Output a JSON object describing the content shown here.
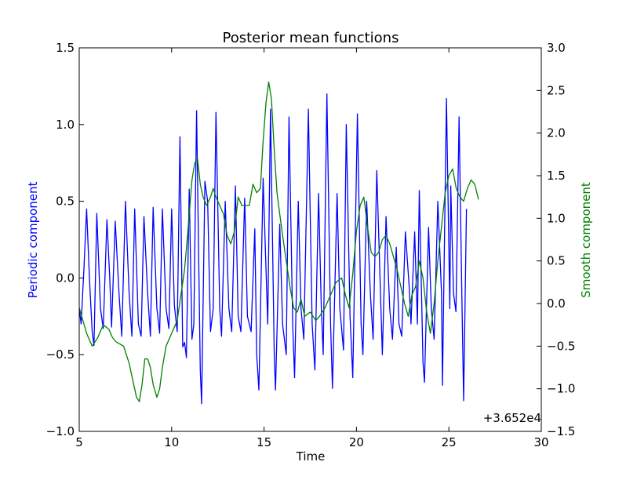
{
  "chart_data": {
    "type": "line",
    "title": "Posterior mean functions",
    "xlabel": "Time",
    "x_offset_label": "+3.652e4",
    "xlim": [
      5,
      30
    ],
    "xticks": [
      "5",
      "10",
      "15",
      "20",
      "25",
      "30"
    ],
    "left_axis": {
      "label": "Periodic component",
      "color": "#0000ff",
      "ylim": [
        -1.0,
        1.5
      ],
      "ticks": [
        "−1.0",
        "−0.5",
        "0.0",
        "0.5",
        "1.0",
        "1.5"
      ]
    },
    "right_axis": {
      "label": "Smooth component",
      "color": "#008000",
      "ylim": [
        -1.5,
        3.0
      ],
      "ticks": [
        "−1.5",
        "−1.0",
        "−0.5",
        "0.0",
        "0.5",
        "1.0",
        "1.5",
        "2.0",
        "2.5",
        "3.0"
      ]
    },
    "series": [
      {
        "axis": "left",
        "color": "#0000ff",
        "points": [
          [
            5.0,
            -0.2
          ],
          [
            5.1,
            -0.3
          ],
          [
            5.25,
            0.05
          ],
          [
            5.4,
            0.45
          ],
          [
            5.55,
            0.0
          ],
          [
            5.7,
            -0.35
          ],
          [
            5.8,
            -0.44
          ],
          [
            5.95,
            0.42
          ],
          [
            6.15,
            -0.2
          ],
          [
            6.3,
            -0.33
          ],
          [
            6.5,
            0.38
          ],
          [
            6.65,
            0.0
          ],
          [
            6.75,
            -0.32
          ],
          [
            6.95,
            0.37
          ],
          [
            7.15,
            -0.1
          ],
          [
            7.3,
            -0.38
          ],
          [
            7.5,
            0.5
          ],
          [
            7.7,
            -0.1
          ],
          [
            7.85,
            -0.38
          ],
          [
            8.0,
            0.45
          ],
          [
            8.2,
            -0.3
          ],
          [
            8.35,
            -0.38
          ],
          [
            8.5,
            0.4
          ],
          [
            8.7,
            -0.1
          ],
          [
            8.85,
            -0.38
          ],
          [
            9.0,
            0.46
          ],
          [
            9.2,
            -0.2
          ],
          [
            9.35,
            -0.36
          ],
          [
            9.5,
            0.45
          ],
          [
            9.7,
            -0.2
          ],
          [
            9.85,
            -0.33
          ],
          [
            10.0,
            0.45
          ],
          [
            10.15,
            -0.18
          ],
          [
            10.3,
            -0.35
          ],
          [
            10.45,
            0.92
          ],
          [
            10.6,
            -0.45
          ],
          [
            10.7,
            -0.42
          ],
          [
            10.8,
            -0.52
          ],
          [
            10.95,
            0.58
          ],
          [
            11.1,
            -0.4
          ],
          [
            11.2,
            -0.3
          ],
          [
            11.35,
            1.09
          ],
          [
            11.55,
            -0.6
          ],
          [
            11.62,
            -0.82
          ],
          [
            11.8,
            0.63
          ],
          [
            11.95,
            0.5
          ],
          [
            12.1,
            -0.35
          ],
          [
            12.25,
            -0.2
          ],
          [
            12.4,
            1.08
          ],
          [
            12.6,
            -0.2
          ],
          [
            12.7,
            -0.38
          ],
          [
            12.9,
            0.5
          ],
          [
            13.1,
            -0.2
          ],
          [
            13.25,
            -0.35
          ],
          [
            13.45,
            0.6
          ],
          [
            13.6,
            -0.25
          ],
          [
            13.75,
            -0.35
          ],
          [
            13.95,
            0.52
          ],
          [
            14.1,
            -0.25
          ],
          [
            14.3,
            -0.35
          ],
          [
            14.5,
            0.32
          ],
          [
            14.6,
            -0.5
          ],
          [
            14.72,
            -0.73
          ],
          [
            14.95,
            0.65
          ],
          [
            15.2,
            -0.3
          ],
          [
            15.35,
            1.1
          ],
          [
            15.55,
            -0.5
          ],
          [
            15.62,
            -0.73
          ],
          [
            15.85,
            0.35
          ],
          [
            16.0,
            -0.3
          ],
          [
            16.2,
            -0.5
          ],
          [
            16.35,
            1.05
          ],
          [
            16.55,
            -0.3
          ],
          [
            16.65,
            -0.65
          ],
          [
            16.85,
            0.5
          ],
          [
            17.0,
            -0.2
          ],
          [
            17.15,
            -0.4
          ],
          [
            17.4,
            1.1
          ],
          [
            17.6,
            -0.3
          ],
          [
            17.75,
            -0.6
          ],
          [
            17.95,
            0.55
          ],
          [
            18.1,
            -0.2
          ],
          [
            18.2,
            -0.5
          ],
          [
            18.4,
            1.2
          ],
          [
            18.6,
            -0.3
          ],
          [
            18.7,
            -0.72
          ],
          [
            18.95,
            0.55
          ],
          [
            19.1,
            -0.2
          ],
          [
            19.3,
            -0.47
          ],
          [
            19.45,
            1.0
          ],
          [
            19.65,
            -0.25
          ],
          [
            19.8,
            -0.65
          ],
          [
            20.05,
            1.07
          ],
          [
            20.25,
            -0.3
          ],
          [
            20.35,
            -0.5
          ],
          [
            20.55,
            0.5
          ],
          [
            20.75,
            -0.1
          ],
          [
            20.9,
            -0.4
          ],
          [
            21.1,
            0.7
          ],
          [
            21.3,
            -0.1
          ],
          [
            21.4,
            -0.5
          ],
          [
            21.6,
            0.4
          ],
          [
            21.8,
            -0.2
          ],
          [
            21.95,
            -0.4
          ],
          [
            22.15,
            0.2
          ],
          [
            22.3,
            -0.3
          ],
          [
            22.45,
            -0.38
          ],
          [
            22.65,
            0.3
          ],
          [
            22.85,
            -0.05
          ],
          [
            22.95,
            -0.3
          ],
          [
            23.15,
            0.3
          ],
          [
            23.3,
            -0.3
          ],
          [
            23.4,
            0.57
          ],
          [
            23.6,
            -0.55
          ],
          [
            23.68,
            -0.68
          ],
          [
            23.9,
            0.33
          ],
          [
            24.05,
            -0.2
          ],
          [
            24.2,
            -0.4
          ],
          [
            24.4,
            0.5
          ],
          [
            24.6,
            -0.1
          ],
          [
            24.65,
            -0.7
          ],
          [
            24.87,
            1.17
          ],
          [
            25.05,
            -0.2
          ],
          [
            25.1,
            0.6
          ],
          [
            25.25,
            -0.1
          ],
          [
            25.38,
            -0.22
          ],
          [
            25.55,
            1.05
          ],
          [
            25.7,
            -0.1
          ],
          [
            25.8,
            -0.8
          ],
          [
            25.95,
            0.45
          ]
        ]
      },
      {
        "axis": "right",
        "color": "#008000",
        "points": [
          [
            5.0,
            -0.05
          ],
          [
            5.4,
            -0.35
          ],
          [
            5.7,
            -0.5
          ],
          [
            6.0,
            -0.4
          ],
          [
            6.3,
            -0.25
          ],
          [
            6.6,
            -0.3
          ],
          [
            6.8,
            -0.4
          ],
          [
            7.0,
            -0.45
          ],
          [
            7.4,
            -0.5
          ],
          [
            7.7,
            -0.7
          ],
          [
            7.9,
            -0.9
          ],
          [
            8.1,
            -1.1
          ],
          [
            8.25,
            -1.15
          ],
          [
            8.4,
            -0.95
          ],
          [
            8.55,
            -0.65
          ],
          [
            8.7,
            -0.65
          ],
          [
            8.85,
            -0.75
          ],
          [
            9.0,
            -0.95
          ],
          [
            9.2,
            -1.1
          ],
          [
            9.35,
            -1.0
          ],
          [
            9.5,
            -0.75
          ],
          [
            9.7,
            -0.5
          ],
          [
            10.0,
            -0.35
          ],
          [
            10.3,
            -0.2
          ],
          [
            10.5,
            0.1
          ],
          [
            10.7,
            0.4
          ],
          [
            10.9,
            0.9
          ],
          [
            11.1,
            1.45
          ],
          [
            11.25,
            1.65
          ],
          [
            11.4,
            1.7
          ],
          [
            11.55,
            1.4
          ],
          [
            11.7,
            1.25
          ],
          [
            11.9,
            1.15
          ],
          [
            12.1,
            1.25
          ],
          [
            12.25,
            1.35
          ],
          [
            12.4,
            1.25
          ],
          [
            12.6,
            1.15
          ],
          [
            12.8,
            1.05
          ],
          [
            13.0,
            0.8
          ],
          [
            13.2,
            0.7
          ],
          [
            13.4,
            0.85
          ],
          [
            13.6,
            1.25
          ],
          [
            13.8,
            1.15
          ],
          [
            14.0,
            1.15
          ],
          [
            14.2,
            1.15
          ],
          [
            14.4,
            1.4
          ],
          [
            14.6,
            1.3
          ],
          [
            14.8,
            1.35
          ],
          [
            14.95,
            1.9
          ],
          [
            15.1,
            2.35
          ],
          [
            15.25,
            2.6
          ],
          [
            15.4,
            2.4
          ],
          [
            15.55,
            1.8
          ],
          [
            15.7,
            1.3
          ],
          [
            15.85,
            1.05
          ],
          [
            16.0,
            0.8
          ],
          [
            16.2,
            0.5
          ],
          [
            16.4,
            0.2
          ],
          [
            16.6,
            -0.05
          ],
          [
            16.8,
            -0.1
          ],
          [
            17.0,
            0.05
          ],
          [
            17.2,
            -0.15
          ],
          [
            17.5,
            -0.1
          ],
          [
            17.8,
            -0.2
          ],
          [
            18.0,
            -0.15
          ],
          [
            18.3,
            -0.05
          ],
          [
            18.6,
            0.1
          ],
          [
            18.9,
            0.25
          ],
          [
            19.2,
            0.3
          ],
          [
            19.4,
            0.1
          ],
          [
            19.6,
            -0.05
          ],
          [
            19.8,
            0.35
          ],
          [
            20.0,
            0.85
          ],
          [
            20.2,
            1.15
          ],
          [
            20.4,
            1.25
          ],
          [
            20.6,
            0.9
          ],
          [
            20.8,
            0.6
          ],
          [
            21.0,
            0.55
          ],
          [
            21.2,
            0.6
          ],
          [
            21.4,
            0.75
          ],
          [
            21.6,
            0.8
          ],
          [
            21.8,
            0.7
          ],
          [
            22.0,
            0.55
          ],
          [
            22.2,
            0.4
          ],
          [
            22.4,
            0.2
          ],
          [
            22.6,
            0.0
          ],
          [
            22.8,
            -0.15
          ],
          [
            23.0,
            0.1
          ],
          [
            23.2,
            0.2
          ],
          [
            23.4,
            0.5
          ],
          [
            23.6,
            0.3
          ],
          [
            23.8,
            -0.1
          ],
          [
            24.0,
            -0.35
          ],
          [
            24.2,
            0.0
          ],
          [
            24.4,
            0.5
          ],
          [
            24.6,
            0.9
          ],
          [
            24.8,
            1.3
          ],
          [
            25.0,
            1.5
          ],
          [
            25.2,
            1.58
          ],
          [
            25.4,
            1.35
          ],
          [
            25.6,
            1.25
          ],
          [
            25.8,
            1.2
          ],
          [
            26.0,
            1.35
          ],
          [
            26.2,
            1.45
          ],
          [
            26.4,
            1.4
          ],
          [
            26.6,
            1.22
          ]
        ]
      }
    ]
  }
}
